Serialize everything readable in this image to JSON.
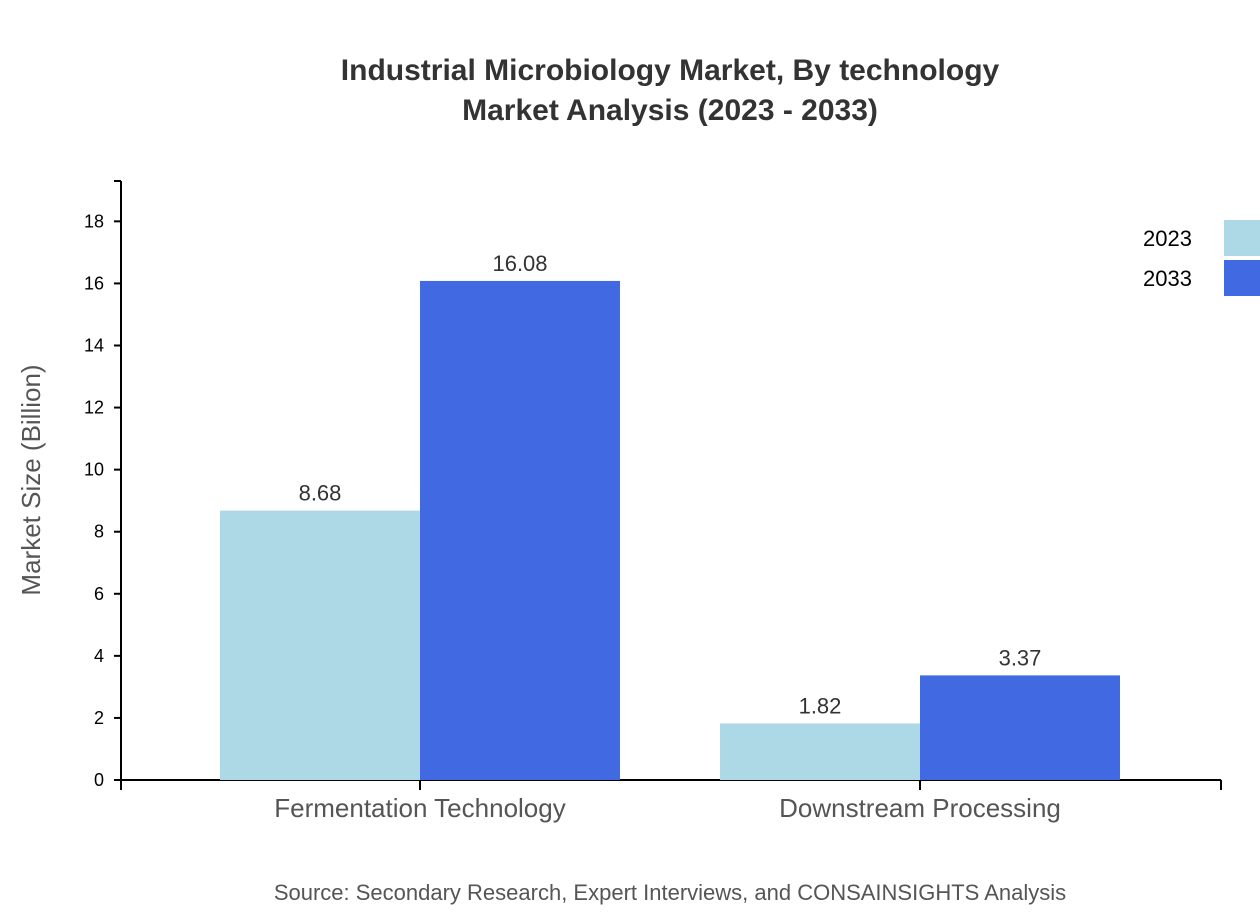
{
  "chart_data": {
    "type": "bar",
    "title": "Industrial Microbiology Market, By technology",
    "subtitle": "Market Analysis (2023 - 2033)",
    "xlabel": "",
    "ylabel": "Market Size (Billion)",
    "categories": [
      "Fermentation Technology",
      "Downstream Processing"
    ],
    "series": [
      {
        "name": "2023",
        "color": "#ADD8E6",
        "values": [
          8.68,
          1.82
        ]
      },
      {
        "name": "2033",
        "color": "#4169E1",
        "values": [
          16.08,
          3.37
        ]
      }
    ],
    "ylim": [
      0,
      19.3
    ],
    "yticks": [
      0,
      2,
      4,
      6,
      8,
      10,
      12,
      14,
      16,
      18
    ],
    "grid": false,
    "legend": "top-right",
    "source": "Source: Secondary Research, Expert Interviews, and CONSAINSIGHTS Analysis"
  }
}
